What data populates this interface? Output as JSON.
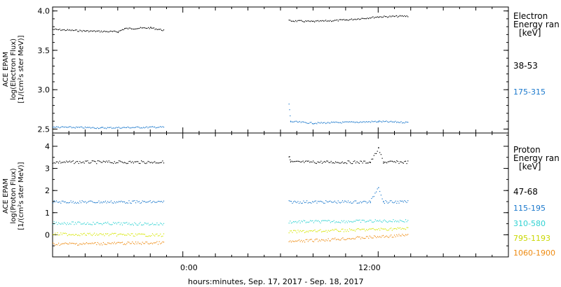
{
  "xaxis": {
    "label": "hours:minutes, Sep. 17, 2017 - Sep. 18, 2017",
    "ticks": [
      "0:00",
      "12:00"
    ]
  },
  "colors": {
    "black": "#000000",
    "blue": "#1a78cc",
    "cyan": "#2fd2d2",
    "yellow": "#d6e600",
    "orange": "#ee8a10"
  },
  "chart_data": [
    {
      "type": "scatter",
      "panel": "electron",
      "ylabel": [
        "ACE EPAM",
        "log(Electron Flux)",
        "[1/(cm²s ster MeV)]"
      ],
      "ylim": [
        2.45,
        4.05
      ],
      "yticks": [
        "2.5",
        "3.0",
        "3.5",
        "4.0"
      ],
      "x_unit": "hours relative to Sep. 17, 2017 00:00",
      "xlim": [
        -8.0,
        20.0
      ],
      "legend_title": [
        "Electron",
        "Energy ran",
        "[keV]"
      ],
      "grid": false,
      "series": [
        {
          "name": "38-53",
          "color": "black",
          "segments": [
            {
              "x": [
                -8.0,
                -6.0,
                -4.0,
                -3.6,
                -2.0,
                -1.2
              ],
              "y": [
                3.77,
                3.75,
                3.74,
                3.78,
                3.79,
                3.76
              ]
            },
            {
              "x": [
                6.5,
                8.0,
                10.0,
                12.0,
                13.8
              ],
              "y": [
                3.88,
                3.87,
                3.89,
                3.93,
                3.94
              ]
            }
          ]
        },
        {
          "name": "175-315",
          "color": "blue",
          "segments": [
            {
              "x": [
                -8.0,
                -5.0,
                -1.2
              ],
              "y": [
                2.53,
                2.52,
                2.53
              ]
            },
            {
              "x": [
                6.5,
                6.6,
                8.0,
                12.0,
                13.8
              ],
              "y": [
                2.82,
                2.6,
                2.58,
                2.6,
                2.59
              ]
            }
          ]
        }
      ]
    },
    {
      "type": "scatter",
      "panel": "proton",
      "ylabel": [
        "ACE EPAM",
        "log(Proton Flux)",
        "[1/(cm²s ster MeV)]"
      ],
      "ylim": [
        -1.0,
        4.6
      ],
      "yticks": [
        "0",
        "1",
        "2",
        "3",
        "4"
      ],
      "x_unit": "hours relative to Sep. 17, 2017 00:00",
      "xlim": [
        -8.0,
        20.0
      ],
      "legend_title": [
        "Proton",
        "Energy ran",
        "[keV]"
      ],
      "grid": false,
      "series": [
        {
          "name": "47-68",
          "color": "black",
          "segments": [
            {
              "x": [
                -8.0,
                -1.2
              ],
              "y": [
                3.3,
                3.3
              ]
            },
            {
              "x": [
                6.5,
                6.6,
                11.5,
                12.0,
                12.3,
                13.8
              ],
              "y": [
                3.6,
                3.3,
                3.3,
                3.9,
                3.3,
                3.3
              ]
            }
          ]
        },
        {
          "name": "115-195",
          "color": "blue",
          "segments": [
            {
              "x": [
                -8.0,
                -1.2
              ],
              "y": [
                1.5,
                1.5
              ]
            },
            {
              "x": [
                6.5,
                11.5,
                12.0,
                12.3,
                13.8
              ],
              "y": [
                1.5,
                1.5,
                2.2,
                1.5,
                1.5
              ]
            }
          ]
        },
        {
          "name": "310-580",
          "color": "cyan",
          "segments": [
            {
              "x": [
                -8.0,
                -1.2
              ],
              "y": [
                0.55,
                0.5
              ]
            },
            {
              "x": [
                6.5,
                13.8
              ],
              "y": [
                0.6,
                0.65
              ]
            }
          ]
        },
        {
          "name": "795-1193",
          "color": "yellow",
          "segments": [
            {
              "x": [
                -8.0,
                -1.2
              ],
              "y": [
                0.05,
                0.0
              ]
            },
            {
              "x": [
                6.5,
                13.8
              ],
              "y": [
                0.15,
                0.3
              ]
            }
          ]
        },
        {
          "name": "1060-1900",
          "color": "orange",
          "segments": [
            {
              "x": [
                -8.0,
                -1.2
              ],
              "y": [
                -0.4,
                -0.35
              ]
            },
            {
              "x": [
                6.5,
                13.8
              ],
              "y": [
                -0.3,
                0.0
              ]
            }
          ]
        }
      ]
    }
  ]
}
